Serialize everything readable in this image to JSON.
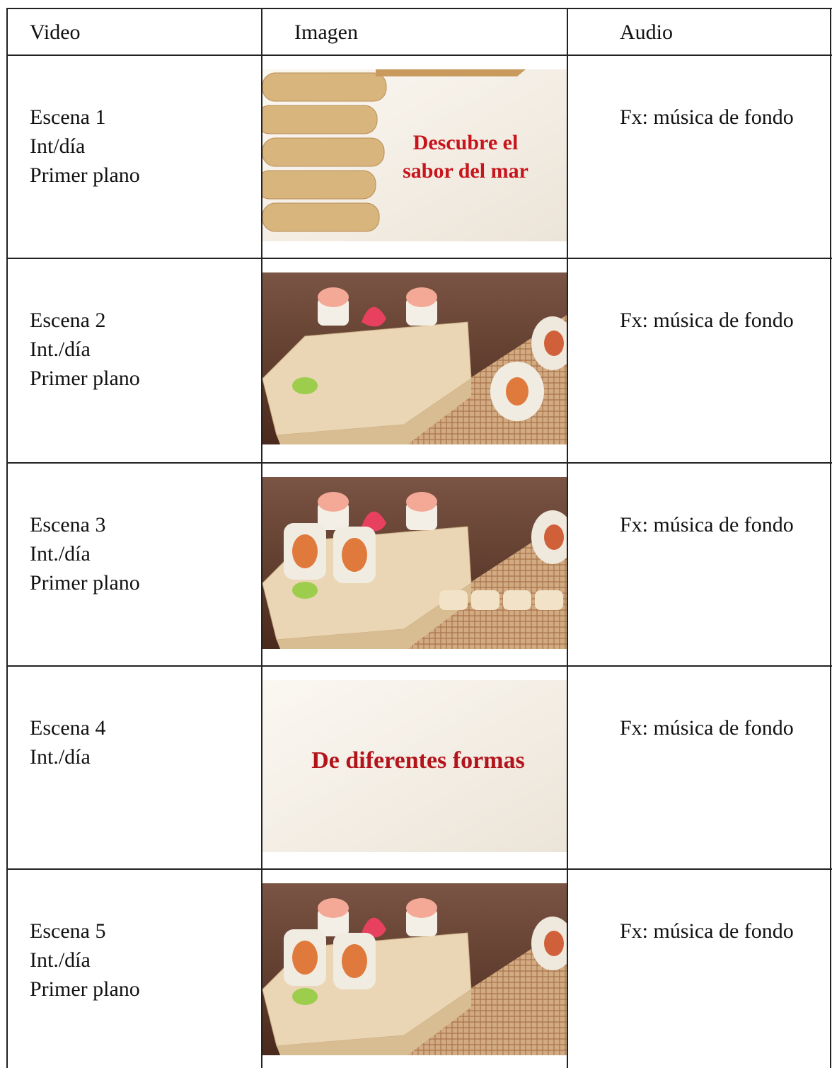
{
  "table": {
    "header": [
      "Video",
      "Imagen",
      "Audio"
    ],
    "rows": [
      {
        "video": [
          "Escena 1",
          "Int/día",
          "Primer plano"
        ],
        "image_text": [
          "Descubre el",
          "sabor del mar"
        ],
        "audio": "Fx: música de fondo"
      },
      {
        "video": [
          "Escena 2",
          "Int./día",
          "Primer plano"
        ],
        "audio": "Fx: música de fondo"
      },
      {
        "video": [
          "Escena 3",
          "Int./día",
          "Primer plano"
        ],
        "audio": "Fx: música de fondo"
      },
      {
        "video": [
          "Escena 4",
          "Int./día"
        ],
        "image_text": [
          "De diferentes formas"
        ],
        "audio": "Fx: música de fondo"
      },
      {
        "video": [
          "Escena 5",
          "Int./día",
          "Primer plano"
        ],
        "audio": "Fx: música de fondo"
      }
    ]
  }
}
